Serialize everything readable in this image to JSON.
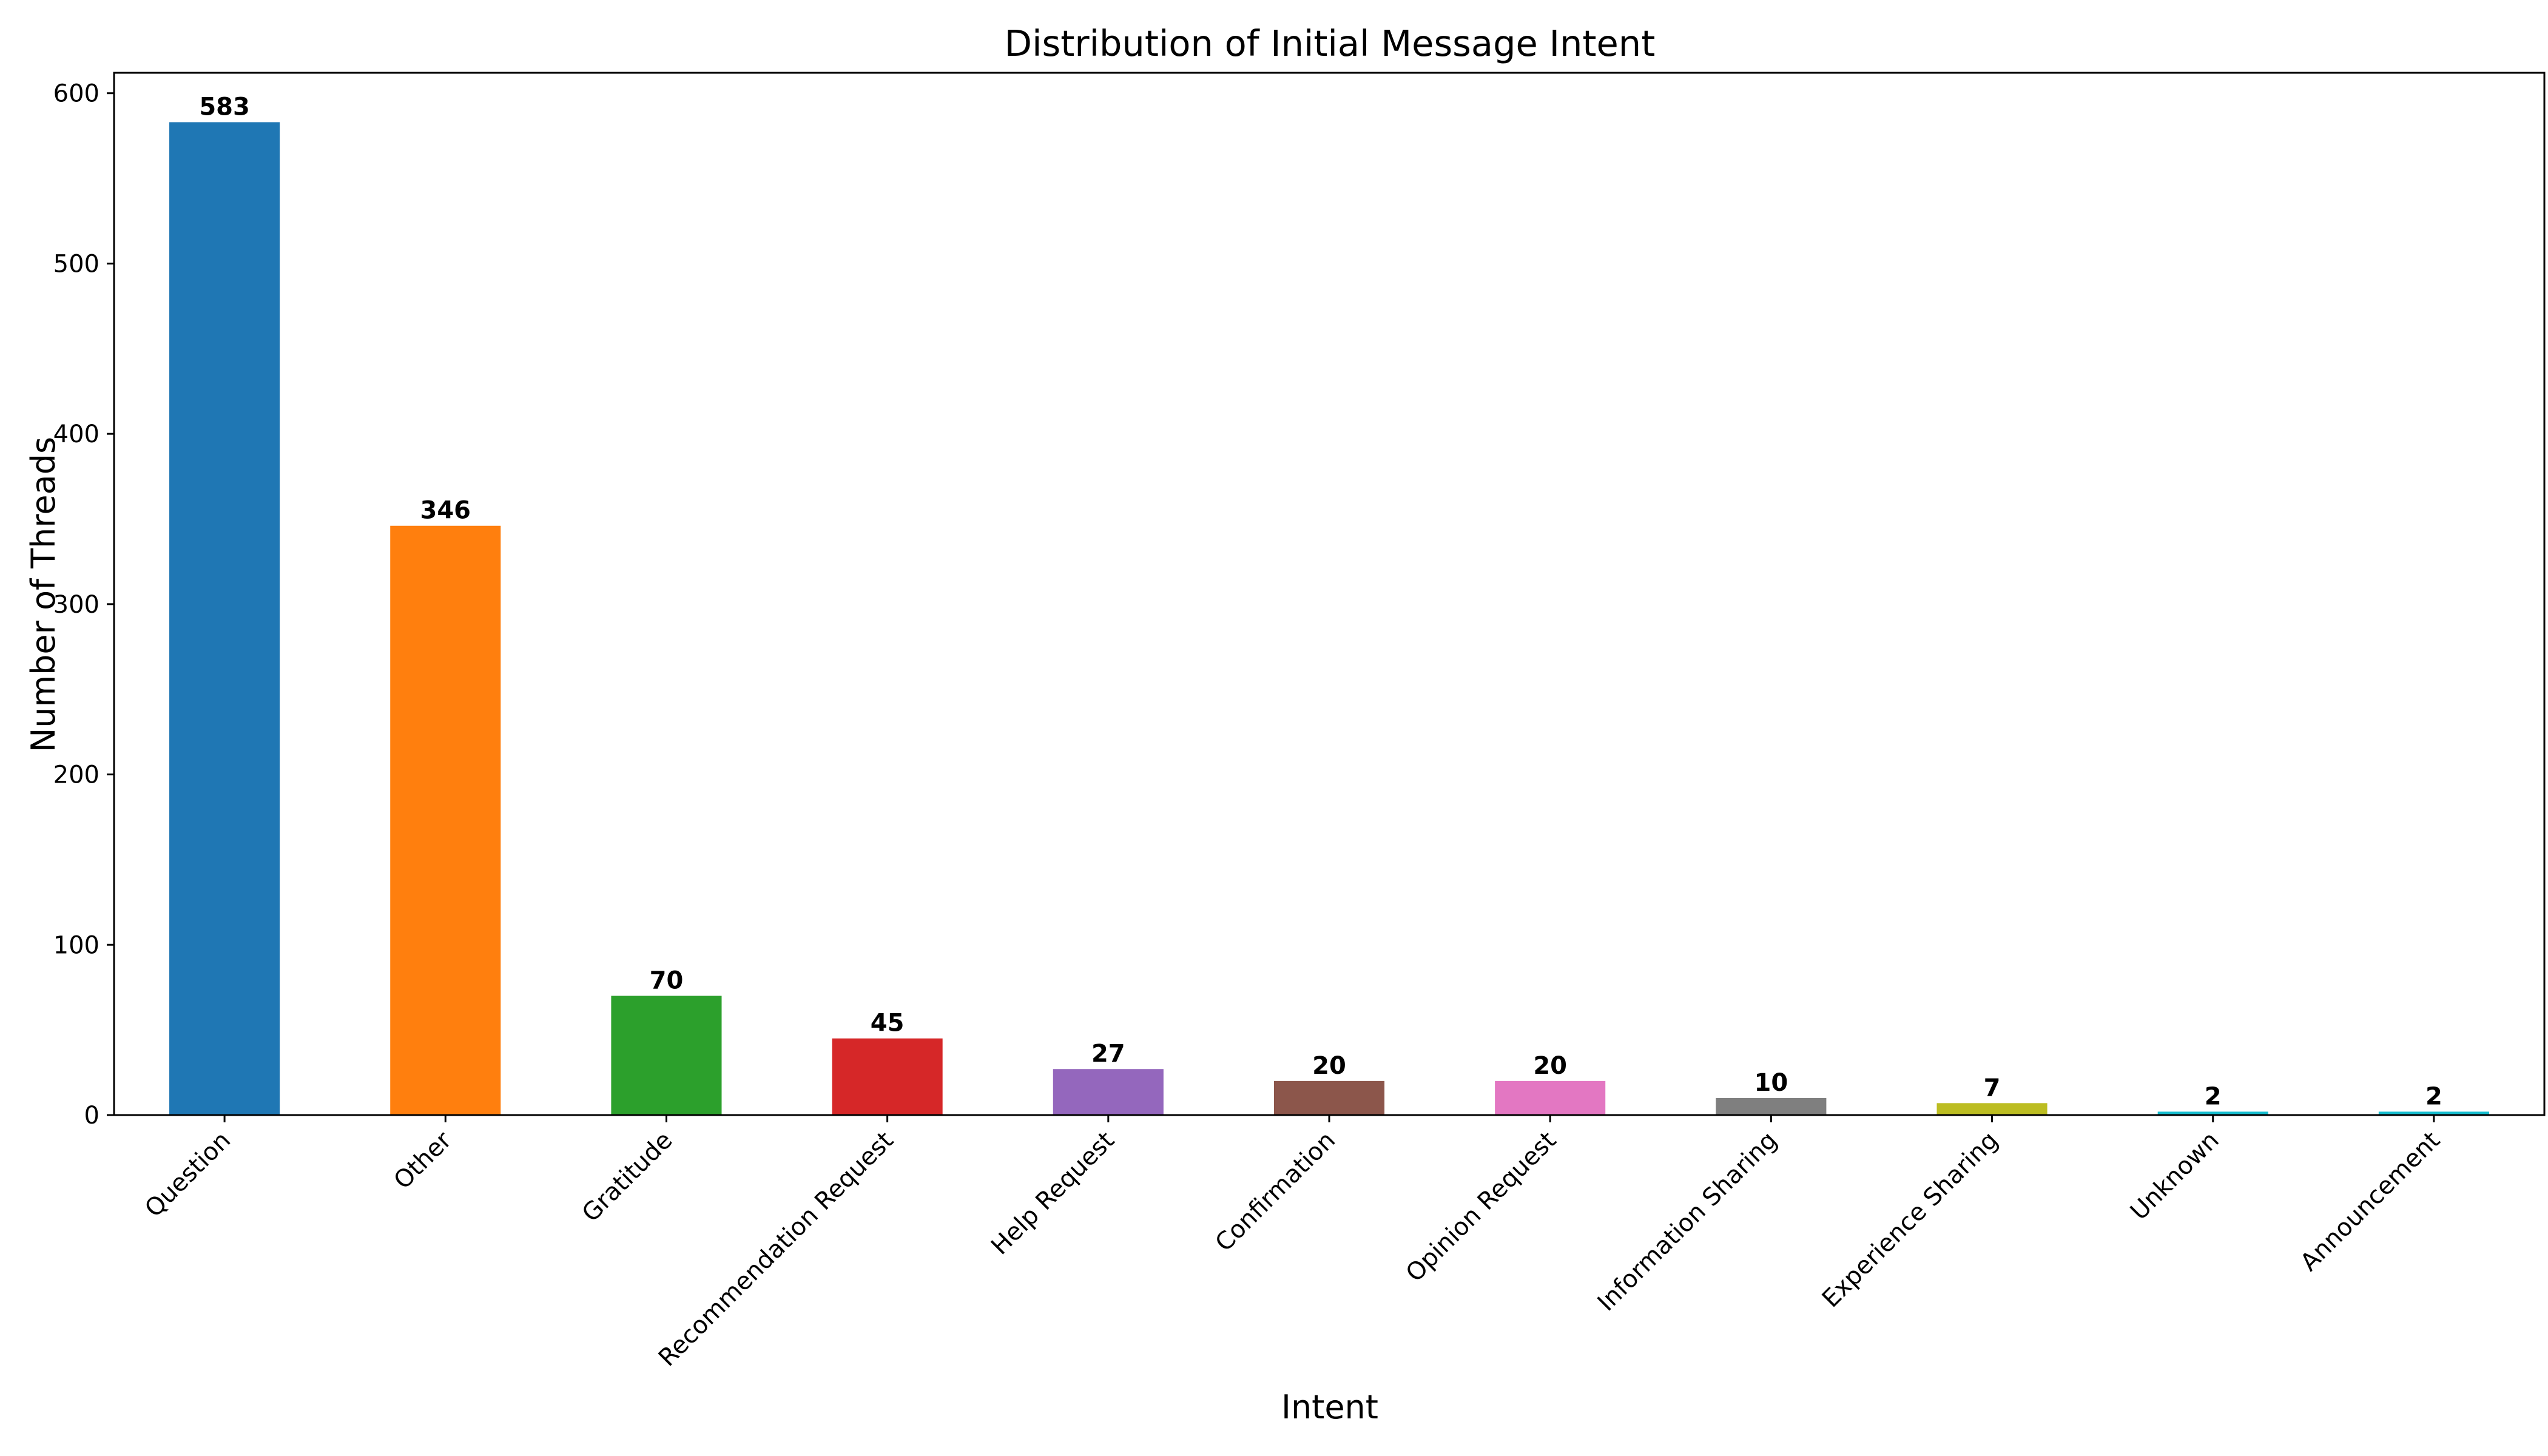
{
  "chart_data": {
    "type": "bar",
    "title": "Distribution of Initial Message Intent",
    "xlabel": "Intent",
    "ylabel": "Number of Threads",
    "categories": [
      "Question",
      "Other",
      "Gratitude",
      "Recommendation Request",
      "Help Request",
      "Confirmation",
      "Opinion Request",
      "Information Sharing",
      "Experience Sharing",
      "Unknown",
      "Announcement"
    ],
    "values": [
      583,
      346,
      70,
      45,
      27,
      20,
      20,
      10,
      7,
      2,
      2
    ],
    "colors": [
      "#1f77b4",
      "#ff7f0e",
      "#2ca02c",
      "#d62728",
      "#9467bd",
      "#8c564b",
      "#e377c2",
      "#7f7f7f",
      "#bcbd22",
      "#17becf",
      "#17becf"
    ],
    "ylim": [
      0,
      612
    ],
    "yticks": [
      0,
      100,
      200,
      300,
      400,
      500,
      600
    ],
    "grid": false,
    "legend": "none"
  }
}
